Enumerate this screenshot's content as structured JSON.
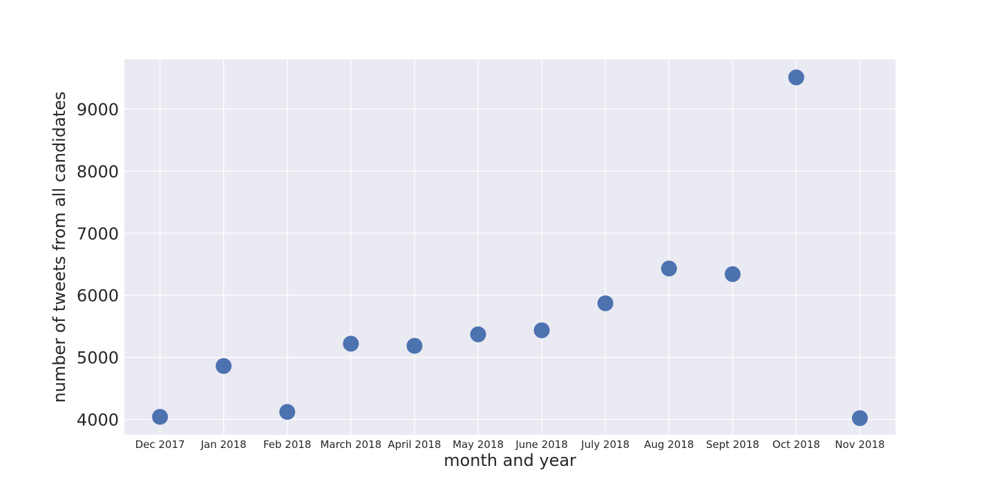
{
  "chart_data": {
    "type": "scatter",
    "title": "",
    "xlabel": "month and year",
    "ylabel": "number of tweets from all candidates",
    "categories": [
      "Dec 2017",
      "Jan 2018",
      "Feb 2018",
      "March 2018",
      "April 2018",
      "May 2018",
      "June 2018",
      "July 2018",
      "Aug 2018",
      "Sept 2018",
      "Oct 2018",
      "Nov 2018"
    ],
    "values": [
      4040,
      4860,
      4120,
      5220,
      5185,
      5370,
      5435,
      5870,
      6430,
      6340,
      9510,
      4020
    ],
    "ylim": [
      3750,
      9800
    ],
    "yticks": [
      4000,
      5000,
      6000,
      7000,
      8000,
      9000
    ],
    "grid": true,
    "legend": "none",
    "colors": {
      "background": "#eaeaf2",
      "grid": "#ffffff",
      "marker": "#4c72b0"
    }
  }
}
